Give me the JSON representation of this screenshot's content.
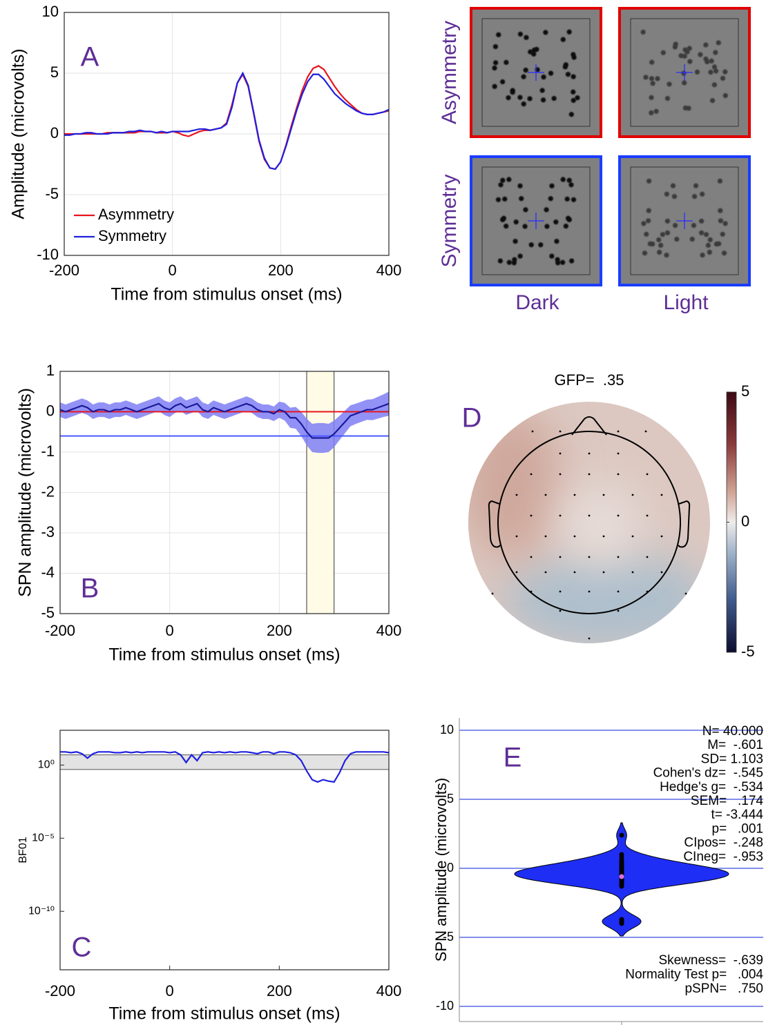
{
  "chart_data": [
    {
      "type": "line",
      "label": "A",
      "xlabel": "Time from stimulus onset (ms)",
      "ylabel": "Amplitude (microvolts)",
      "x": [
        -200,
        -190,
        -180,
        -170,
        -160,
        -150,
        -140,
        -130,
        -120,
        -110,
        -100,
        -90,
        -80,
        -70,
        -60,
        -50,
        -40,
        -30,
        -20,
        -10,
        0,
        10,
        20,
        30,
        40,
        50,
        60,
        70,
        80,
        90,
        100,
        110,
        120,
        130,
        140,
        150,
        160,
        170,
        180,
        190,
        200,
        210,
        220,
        230,
        240,
        250,
        260,
        270,
        280,
        290,
        300,
        310,
        320,
        330,
        340,
        350,
        360,
        370,
        380,
        390,
        400
      ],
      "series": [
        {
          "name": "Asymmetry",
          "color": "#e8141c",
          "values": [
            0,
            0,
            0,
            0,
            0,
            0,
            0,
            0,
            0.1,
            0.1,
            0.1,
            0.1,
            0.1,
            0.1,
            0.2,
            0.2,
            0.2,
            0.1,
            0.1,
            0.1,
            0.2,
            0.1,
            -0.1,
            -0.2,
            0,
            0.2,
            0.3,
            0.3,
            0.4,
            0.5,
            0.9,
            2.4,
            4.2,
            4.9,
            3.9,
            1.7,
            -0.6,
            -2.1,
            -2.8,
            -2.9,
            -2.3,
            -0.9,
            0.7,
            2.2,
            3.6,
            4.7,
            5.4,
            5.6,
            5.3,
            4.6,
            3.9,
            3.3,
            2.8,
            2.4,
            2.0,
            1.7,
            1.6,
            1.6,
            1.7,
            1.8,
            1.9
          ]
        },
        {
          "name": "Symmetry",
          "color": "#1f1fe0",
          "values": [
            -0.1,
            -0.1,
            0,
            0,
            0.1,
            0.1,
            0,
            0,
            0,
            0.1,
            0.1,
            0.1,
            0.2,
            0.2,
            0.3,
            0.2,
            0.2,
            0.1,
            0.2,
            0.1,
            0.2,
            0.2,
            0.2,
            0.2,
            0.3,
            0.4,
            0.4,
            0.3,
            0.4,
            0.5,
            0.8,
            2.2,
            4.2,
            5.0,
            4.0,
            1.8,
            -0.5,
            -2.0,
            -2.8,
            -2.9,
            -2.3,
            -1.0,
            0.5,
            2.0,
            3.3,
            4.3,
            4.9,
            4.9,
            4.5,
            3.9,
            3.3,
            2.9,
            2.5,
            2.2,
            1.9,
            1.7,
            1.6,
            1.6,
            1.7,
            1.8,
            2.0
          ]
        }
      ],
      "xlim": [
        -200,
        400
      ],
      "ylim": [
        -10,
        10
      ],
      "xticks": [
        -200,
        0,
        200,
        400
      ],
      "yticks": [
        -10,
        -5,
        0,
        5,
        10
      ],
      "grid": true,
      "legend": "lower left"
    },
    {
      "type": "line",
      "label": "B",
      "xlabel": "Time from stimulus onset (ms)",
      "ylabel": "SPN amplitude (microvolts)",
      "x": [
        -200,
        -190,
        -180,
        -170,
        -160,
        -150,
        -140,
        -130,
        -120,
        -110,
        -100,
        -90,
        -80,
        -70,
        -60,
        -50,
        -40,
        -30,
        -20,
        -10,
        0,
        10,
        20,
        30,
        40,
        50,
        60,
        70,
        80,
        90,
        100,
        110,
        120,
        130,
        140,
        150,
        160,
        170,
        180,
        190,
        200,
        210,
        220,
        230,
        240,
        250,
        260,
        270,
        280,
        290,
        300,
        310,
        320,
        330,
        340,
        350,
        360,
        370,
        380,
        390,
        400
      ],
      "series": [
        {
          "color": "#1a1a9a",
          "band_color": "#7f7ff5",
          "values": [
            0.05,
            0,
            0.05,
            0.1,
            0.15,
            0.1,
            0,
            0.05,
            0.05,
            0,
            0.05,
            0.05,
            0.1,
            0.05,
            0,
            0.05,
            0.1,
            0.15,
            0.2,
            0.1,
            0.05,
            0.15,
            0.2,
            0.1,
            0.15,
            0.2,
            0.05,
            0,
            0.1,
            0.05,
            0,
            0.05,
            0.1,
            0.15,
            0.2,
            0.15,
            0.05,
            0,
            0,
            -0.05,
            0.05,
            0,
            -0.15,
            -0.15,
            -0.3,
            -0.5,
            -0.65,
            -0.65,
            -0.65,
            -0.65,
            -0.55,
            -0.4,
            -0.25,
            -0.1,
            -0.05,
            0,
            0.05,
            0.05,
            0.1,
            0.15,
            0.2
          ],
          "error": [
            0.18,
            0.18,
            0.18,
            0.18,
            0.18,
            0.18,
            0.18,
            0.18,
            0.18,
            0.18,
            0.18,
            0.18,
            0.18,
            0.18,
            0.18,
            0.18,
            0.18,
            0.18,
            0.18,
            0.18,
            0.18,
            0.18,
            0.18,
            0.18,
            0.18,
            0.18,
            0.18,
            0.18,
            0.18,
            0.18,
            0.18,
            0.18,
            0.18,
            0.18,
            0.18,
            0.18,
            0.18,
            0.18,
            0.18,
            0.18,
            0.2,
            0.22,
            0.25,
            0.27,
            0.3,
            0.33,
            0.35,
            0.37,
            0.37,
            0.35,
            0.33,
            0.3,
            0.28,
            0.26,
            0.25,
            0.25,
            0.25,
            0.26,
            0.27,
            0.28,
            0.3
          ]
        }
      ],
      "reference_lines": [
        {
          "value": 0,
          "color": "#e8141c"
        },
        {
          "value": -0.6,
          "color": "#4a5aff"
        }
      ],
      "window": [
        250,
        300
      ],
      "xlim": [
        -200,
        400
      ],
      "ylim": [
        -5,
        1
      ],
      "xticks": [
        -200,
        0,
        200,
        400
      ],
      "yticks": [
        1,
        0,
        -1,
        -2,
        -3,
        -4,
        -5
      ],
      "grid": true
    },
    {
      "type": "topomap",
      "label": "D",
      "title": "GFP=  .35",
      "clim": [
        -5,
        5
      ],
      "cticks": [
        5,
        0,
        -5
      ]
    },
    {
      "type": "line",
      "label": "C",
      "xlabel": "Time from stimulus onset (ms)",
      "ylabel": "BF01",
      "x": [
        -200,
        -190,
        -180,
        -170,
        -160,
        -150,
        -140,
        -130,
        -120,
        -110,
        -100,
        -90,
        -80,
        -70,
        -60,
        -50,
        -40,
        -30,
        -20,
        -10,
        0,
        10,
        20,
        30,
        40,
        50,
        60,
        70,
        80,
        90,
        100,
        110,
        120,
        130,
        140,
        150,
        160,
        170,
        180,
        190,
        200,
        210,
        220,
        230,
        240,
        250,
        260,
        270,
        280,
        290,
        300,
        310,
        320,
        330,
        340,
        350,
        360,
        370,
        380,
        390,
        400
      ],
      "series": [
        {
          "color": "#1f1fe0",
          "values": [
            8,
            8,
            7,
            8,
            6,
            3,
            6,
            8,
            8,
            8,
            7,
            7,
            8,
            7,
            8,
            7,
            8,
            8,
            8,
            8,
            7,
            8,
            5,
            1.5,
            5,
            2,
            7,
            8,
            7,
            8,
            7,
            8,
            7,
            8,
            8,
            7,
            6,
            8,
            8,
            6,
            8,
            8,
            7,
            5,
            2,
            0.4,
            0.1,
            0.07,
            0.1,
            0.08,
            0.07,
            0.3,
            2,
            6,
            8,
            8,
            8,
            8,
            8,
            8,
            7
          ]
        }
      ],
      "band": [
        0.5,
        5
      ],
      "log_scale": true,
      "xlim": [
        -200,
        400
      ],
      "ylim": [
        1e-14,
        240
      ],
      "xticks": [
        -200,
        0,
        200,
        400
      ],
      "yticks": [
        {
          "value": 1,
          "label": "10⁰"
        },
        {
          "value": 1e-05,
          "label": "10⁻⁵"
        },
        {
          "value": 1e-10,
          "label": "10⁻¹⁰"
        }
      ],
      "grid": false
    },
    {
      "type": "violin",
      "label": "E",
      "ylabel": "SPN amplitude (microvolts)",
      "color": "#1f2ef5",
      "points": [
        2.4,
        1.0,
        0.8,
        0.6,
        0.5,
        0.4,
        0.3,
        0.2,
        0.1,
        0.0,
        0.0,
        -0.1,
        -0.2,
        -0.3,
        -0.3,
        -0.4,
        -0.5,
        -0.5,
        -0.6,
        -0.6,
        -0.7,
        -0.7,
        -0.8,
        -0.8,
        -0.9,
        -0.9,
        -1.0,
        -1.0,
        -1.1,
        -1.2,
        -1.3,
        -0.1,
        -0.1,
        -0.2,
        -0.3,
        -0.4,
        -3.7,
        -3.8,
        -3.9,
        -4.0
      ],
      "mean": -0.601,
      "stats": [
        "N= 40.000",
        "M=  -.601",
        "SD= 1.103",
        "Cohen's dz=  -.545",
        "Hedge's g=  -.534",
        "SEM=   .174",
        "t= -3.444",
        "p=   .001",
        "CIpos=  -.248",
        "CIneg=  -.953"
      ],
      "stats_bottom": [
        "Skewness=  -.639",
        "Normality Test p=   .004",
        "pSPN=   .750"
      ],
      "ylim": [
        -11.1,
        10.9
      ],
      "yticks": [
        -10,
        -5,
        0,
        5,
        10
      ],
      "grid": true
    }
  ],
  "stimuli": {
    "rows": [
      {
        "label": "Asymmetry",
        "color": "#e00000"
      },
      {
        "label": "Symmetry",
        "color": "#1a3cff"
      }
    ],
    "columns": [
      {
        "label": "Dark",
        "dot_color": "#0a0a0a"
      },
      {
        "label": "Light",
        "dot_color": "#3a3a3a"
      }
    ]
  }
}
